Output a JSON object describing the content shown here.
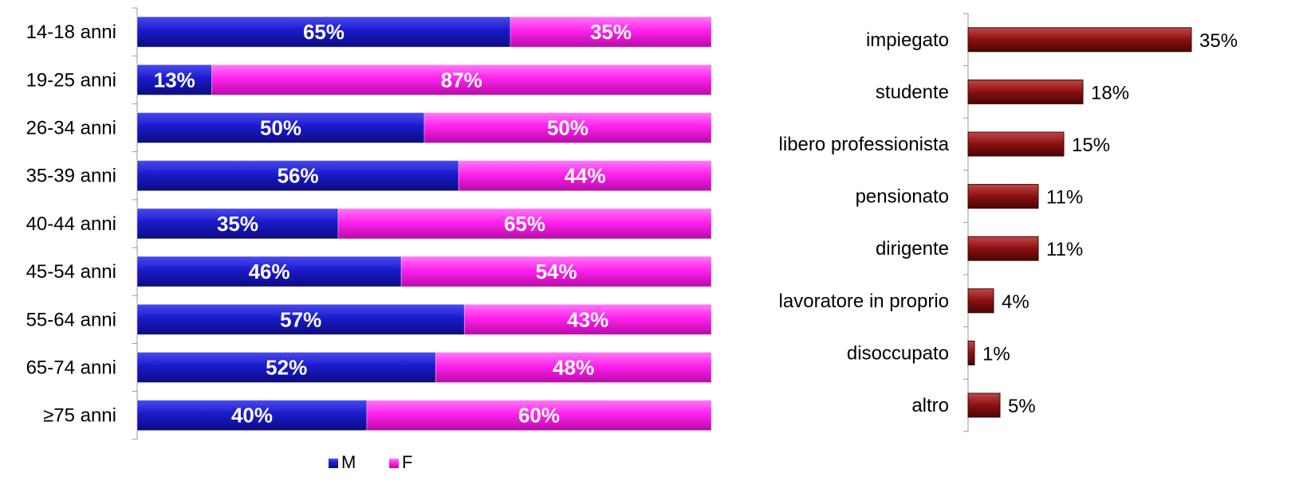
{
  "chart_data": [
    {
      "type": "bar",
      "orientation": "horizontal",
      "stacked": "percent",
      "categories": [
        "14-18 anni",
        "19-25 anni",
        "26-34 anni",
        "35-39 anni",
        "40-44 anni",
        "45-54 anni",
        "55-64 anni",
        "65-74 anni",
        "≥75 anni"
      ],
      "series": [
        {
          "name": "M",
          "color": "#1a1acc",
          "values": [
            65,
            13,
            50,
            56,
            35,
            46,
            57,
            52,
            40
          ],
          "labels": [
            "65%",
            "13%",
            "50%",
            "56%",
            "35%",
            "46%",
            "57%",
            "52%",
            "40%"
          ]
        },
        {
          "name": "F",
          "color": "#ff22ee",
          "values": [
            35,
            87,
            50,
            44,
            65,
            54,
            43,
            48,
            60
          ],
          "labels": [
            "35%",
            "87%",
            "50%",
            "44%",
            "65%",
            "54%",
            "43%",
            "48%",
            "60%"
          ]
        }
      ],
      "xlim": [
        0,
        100
      ],
      "legend": {
        "position": "bottom",
        "items": [
          "M",
          "F"
        ]
      },
      "grid": false
    },
    {
      "type": "bar",
      "orientation": "horizontal",
      "categories": [
        "impiegato",
        "studente",
        "libero professionista",
        "pensionato",
        "dirigente",
        "lavoratore in proprio",
        "disoccupato",
        "altro"
      ],
      "values": [
        35,
        18,
        15,
        11,
        11,
        4,
        1,
        5
      ],
      "labels": [
        "35%",
        "18%",
        "15%",
        "11%",
        "11%",
        "4%",
        "1%",
        "5%"
      ],
      "color": "#8b1010",
      "grid": false
    }
  ]
}
